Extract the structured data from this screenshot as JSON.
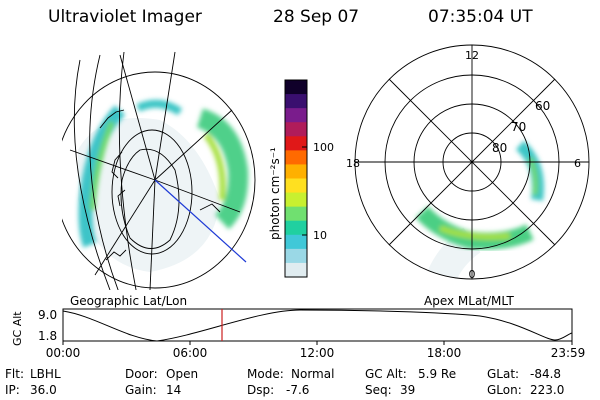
{
  "header": {
    "title": "Ultraviolet Imager",
    "date": "28 Sep 07",
    "time": "07:35:04 UT"
  },
  "colorbar": {
    "unit": "photon cm⁻²s⁻¹",
    "ticks": [
      "100",
      "10"
    ],
    "colors": [
      "#10002a",
      "#3a0f6f",
      "#7a1c8c",
      "#b01c5a",
      "#e01818",
      "#ff6a00",
      "#ffb000",
      "#ffe020",
      "#c8f030",
      "#70e070",
      "#20d0a0",
      "#40c8d8",
      "#9ad8e6",
      "#e0ecf0"
    ]
  },
  "left_panel": {
    "caption": "Geographic Lat/Lon"
  },
  "right_panel": {
    "caption": "Apex MLat/MLT",
    "mlt_labels": {
      "top": "12",
      "left": "18",
      "right": "6",
      "bottom": "0"
    },
    "lat_labels": [
      "60",
      "70",
      "80"
    ]
  },
  "timeline": {
    "ylabel": "GC Alt",
    "y_ticks": [
      "9.0",
      "1.8"
    ],
    "x_ticks": [
      "00:00",
      "06:00",
      "12:00",
      "18:00",
      "23:59"
    ],
    "marker_time": "07:35"
  },
  "footer": {
    "row1": [
      {
        "key": "Flt:",
        "val": "LBHL"
      },
      {
        "key": "Door:",
        "val": "Open"
      },
      {
        "key": "Mode:",
        "val": "Normal"
      },
      {
        "key": "GC Alt:",
        "val": "5.9 Re"
      },
      {
        "key": "GLat:",
        "val": "-84.8"
      }
    ],
    "row2": [
      {
        "key": "IP:",
        "val": "36.0"
      },
      {
        "key": "Gain:",
        "val": "14"
      },
      {
        "key": "Dsp:",
        "val": "-7.6"
      },
      {
        "key": "Seq:",
        "val": "39"
      },
      {
        "key": "GLon:",
        "val": "223.0"
      }
    ]
  }
}
